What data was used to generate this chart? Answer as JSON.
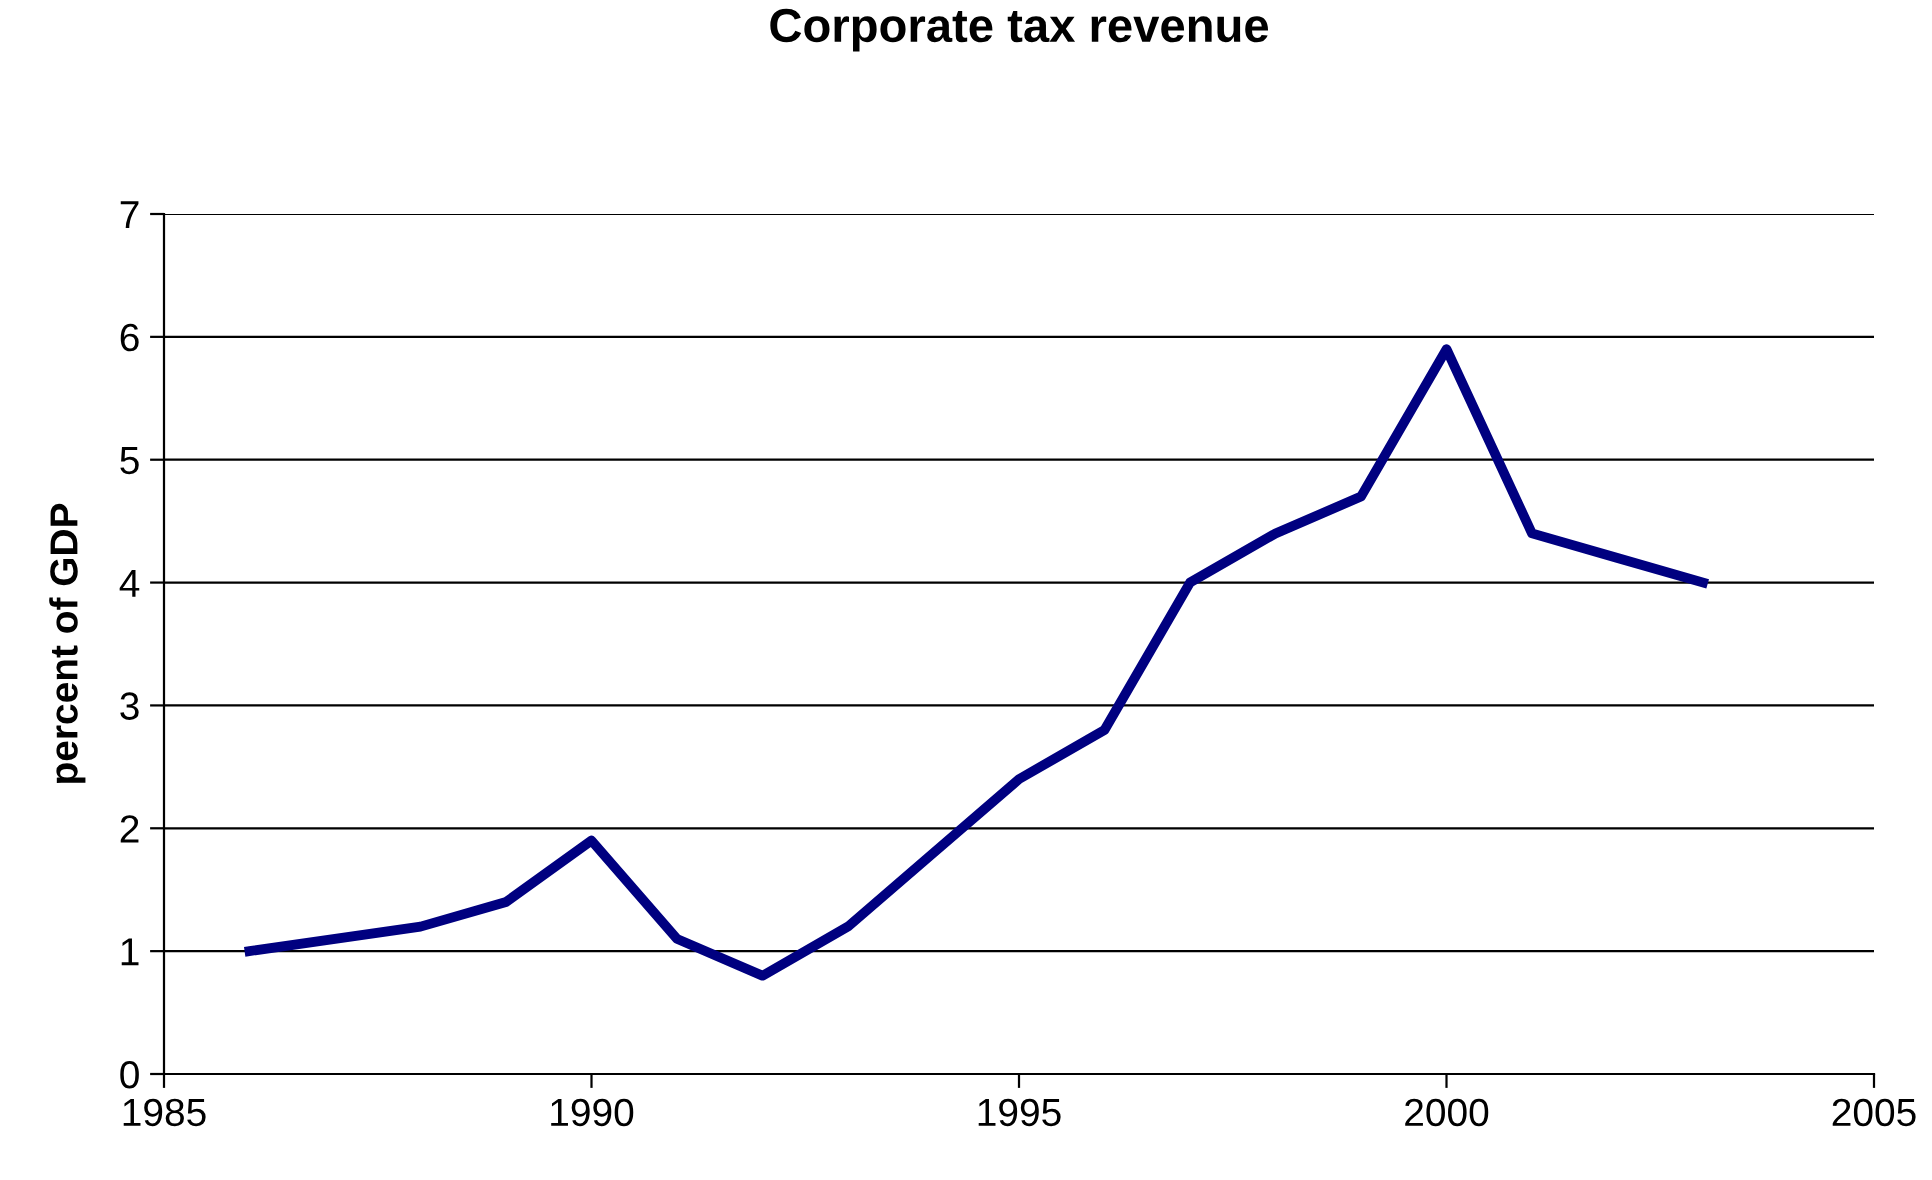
{
  "chart_data": {
    "type": "line",
    "title": "Corporate tax revenue",
    "ylabel": "percent of GDP",
    "x": [
      1986,
      1987,
      1988,
      1989,
      1990,
      1991,
      1992,
      1993,
      1994,
      1995,
      1996,
      1997,
      1998,
      1999,
      2000,
      2001,
      2002,
      2003
    ],
    "series": [
      {
        "color": "#000080",
        "values": [
          1.0,
          1.1,
          1.2,
          1.4,
          1.9,
          1.1,
          0.8,
          1.2,
          1.8,
          2.4,
          2.8,
          4.0,
          4.4,
          4.7,
          5.9,
          4.4,
          4.2,
          4.0
        ]
      }
    ],
    "xlim": [
      1985,
      2005
    ],
    "xticks": [
      1985,
      1990,
      1995,
      2000,
      2005
    ],
    "ylim": [
      0,
      7
    ],
    "yticks": [
      0,
      1,
      2,
      3,
      4,
      5,
      6,
      7
    ],
    "grid": "y",
    "legend": false,
    "marker": "none",
    "line_style": "solid"
  }
}
